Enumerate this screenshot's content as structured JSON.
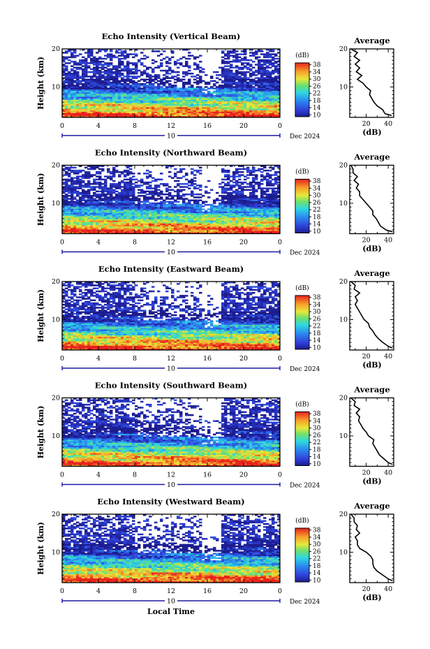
{
  "figure": {
    "date_label": "Dec 2024",
    "x_axis_label": "Local Time",
    "y_axis_label": "Height (km)",
    "colorbar_unit": "(dB)",
    "average_title": "Average",
    "average_xlabel": "(dB)",
    "day_marker": "10"
  },
  "chart_data": [
    {
      "type": "heatmap",
      "title": "Echo Intensity (Vertical Beam)",
      "x_ticks": [
        "0",
        "4",
        "8",
        "12",
        "16",
        "20",
        "0"
      ],
      "xlim": [
        0,
        24
      ],
      "y_ticks": [
        "20",
        "10"
      ],
      "ylim": [
        2,
        20
      ],
      "colorbar_ticks": [
        "38",
        "34",
        "30",
        "26",
        "22",
        "18",
        "14",
        "10"
      ],
      "clim": [
        10,
        38
      ],
      "profile": {
        "x_ticks": [
          "20",
          "40"
        ],
        "y_ticks": [
          "20",
          "10"
        ],
        "heights": [
          2.5,
          3,
          4,
          5,
          6,
          7,
          8,
          9,
          10,
          11,
          12,
          13,
          14,
          15,
          16,
          17,
          18,
          19,
          20
        ],
        "values": [
          43,
          37,
          35,
          30,
          27,
          25,
          23,
          24,
          20,
          17,
          12,
          16,
          11,
          14,
          10,
          14,
          9,
          12,
          6
        ]
      }
    },
    {
      "type": "heatmap",
      "title": "Echo Intensity (Northward Beam)",
      "x_ticks": [
        "0",
        "4",
        "8",
        "12",
        "16",
        "20",
        "0"
      ],
      "xlim": [
        0,
        24
      ],
      "y_ticks": [
        "20",
        "10"
      ],
      "ylim": [
        2,
        20
      ],
      "colorbar_ticks": [
        "38",
        "34",
        "30",
        "26",
        "22",
        "18",
        "14",
        "10"
      ],
      "clim": [
        10,
        38
      ],
      "profile": {
        "x_ticks": [
          "20",
          "40"
        ],
        "y_ticks": [
          "20",
          "10"
        ],
        "heights": [
          2.5,
          3,
          4,
          5,
          6,
          7,
          8,
          9,
          10,
          11,
          12,
          13,
          14,
          15,
          16,
          17,
          18,
          19,
          20
        ],
        "values": [
          44,
          38,
          33,
          31,
          29,
          26,
          26,
          23,
          20,
          17,
          14,
          14,
          11,
          13,
          9,
          12,
          8,
          8,
          6
        ]
      }
    },
    {
      "type": "heatmap",
      "title": "Echo Intensity (Eastward Beam)",
      "x_ticks": [
        "0",
        "4",
        "8",
        "12",
        "16",
        "20",
        "0"
      ],
      "xlim": [
        0,
        24
      ],
      "y_ticks": [
        "20",
        "10"
      ],
      "ylim": [
        2,
        20
      ],
      "colorbar_ticks": [
        "38",
        "34",
        "30",
        "26",
        "22",
        "18",
        "14",
        "10"
      ],
      "clim": [
        10,
        38
      ],
      "profile": {
        "x_ticks": [
          "20",
          "40"
        ],
        "y_ticks": [
          "20",
          "10"
        ],
        "heights": [
          2.5,
          3,
          4,
          5,
          6,
          7,
          8,
          9,
          10,
          11,
          12,
          13,
          14,
          15,
          16,
          17,
          18,
          19,
          20
        ],
        "values": [
          44,
          40,
          35,
          31,
          28,
          26,
          23,
          22,
          18,
          16,
          14,
          12,
          10,
          12,
          10,
          14,
          9,
          10,
          6
        ]
      }
    },
    {
      "type": "heatmap",
      "title": "Echo Intensity (Southward Beam)",
      "x_ticks": [
        "0",
        "4",
        "8",
        "12",
        "16",
        "20",
        "0"
      ],
      "xlim": [
        0,
        24
      ],
      "y_ticks": [
        "20",
        "10"
      ],
      "ylim": [
        2,
        20
      ],
      "colorbar_ticks": [
        "38",
        "34",
        "30",
        "26",
        "22",
        "18",
        "14",
        "10"
      ],
      "clim": [
        10,
        38
      ],
      "profile": {
        "x_ticks": [
          "20",
          "40"
        ],
        "y_ticks": [
          "20",
          "10"
        ],
        "heights": [
          2.5,
          3,
          4,
          5,
          6,
          7,
          8,
          9,
          10,
          11,
          12,
          13,
          14,
          15,
          16,
          17,
          18,
          19,
          20
        ],
        "values": [
          44,
          40,
          36,
          32,
          30,
          28,
          26,
          27,
          22,
          20,
          17,
          15,
          13,
          14,
          11,
          14,
          9,
          10,
          6
        ]
      }
    },
    {
      "type": "heatmap",
      "title": "Echo Intensity (Westward Beam)",
      "x_ticks": [
        "0",
        "4",
        "8",
        "12",
        "16",
        "20",
        "0"
      ],
      "xlim": [
        0,
        24
      ],
      "y_ticks": [
        "20",
        "10"
      ],
      "ylim": [
        2,
        20
      ],
      "colorbar_ticks": [
        "38",
        "34",
        "30",
        "26",
        "22",
        "18",
        "14",
        "10"
      ],
      "clim": [
        10,
        38
      ],
      "profile": {
        "x_ticks": [
          "20",
          "40"
        ],
        "y_ticks": [
          "20",
          "10"
        ],
        "heights": [
          2.5,
          3,
          4,
          5,
          6,
          7,
          8,
          9,
          10,
          11,
          12,
          13,
          14,
          15,
          16,
          17,
          18,
          19,
          20
        ],
        "values": [
          44,
          40,
          35,
          30,
          27,
          26,
          26,
          24,
          20,
          14,
          12,
          12,
          10,
          14,
          11,
          12,
          9,
          9,
          6
        ]
      }
    }
  ]
}
